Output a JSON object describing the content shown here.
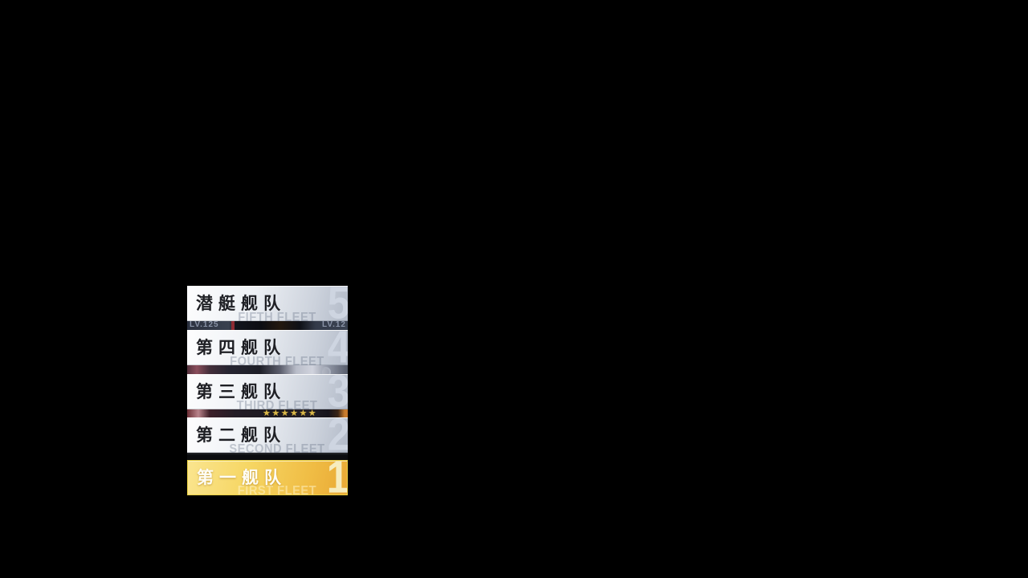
{
  "screen": {
    "description": "fleet selection overlay",
    "background_color": "#000000"
  },
  "fleet_panel": {
    "buttons": [
      {
        "label": "潜艇舰队",
        "watermark": "FIFTH FLEET",
        "number": "5",
        "selected": false
      },
      {
        "label": "第四舰队",
        "watermark": "FOURTH FLEET",
        "number": "4",
        "selected": false
      },
      {
        "label": "第三舰队",
        "watermark": "THIRD FLEET",
        "number": "3",
        "selected": false
      },
      {
        "label": "第二舰队",
        "watermark": "SECOND FLEET",
        "number": "2",
        "selected": false
      },
      {
        "label": "第一舰队",
        "watermark": "FIRST FLEET",
        "number": "1",
        "selected": true
      }
    ],
    "colors": {
      "button_gradient_start": "#fdfdfe",
      "button_gradient_end": "#b2bac8",
      "button_text": "#1e1f24",
      "button_number": "#ced5e1",
      "selected_gradient_start": "#fae58f",
      "selected_gradient_end": "#e9a935",
      "selected_border": "#ead043",
      "selected_text": "#fefdf6",
      "star_gold": "#d9b84a"
    },
    "background_strips": {
      "levels": {
        "left_text": "LV.125",
        "right_text": "LV.12"
      },
      "stars": {
        "stars_text": "★★★★★★"
      }
    }
  }
}
